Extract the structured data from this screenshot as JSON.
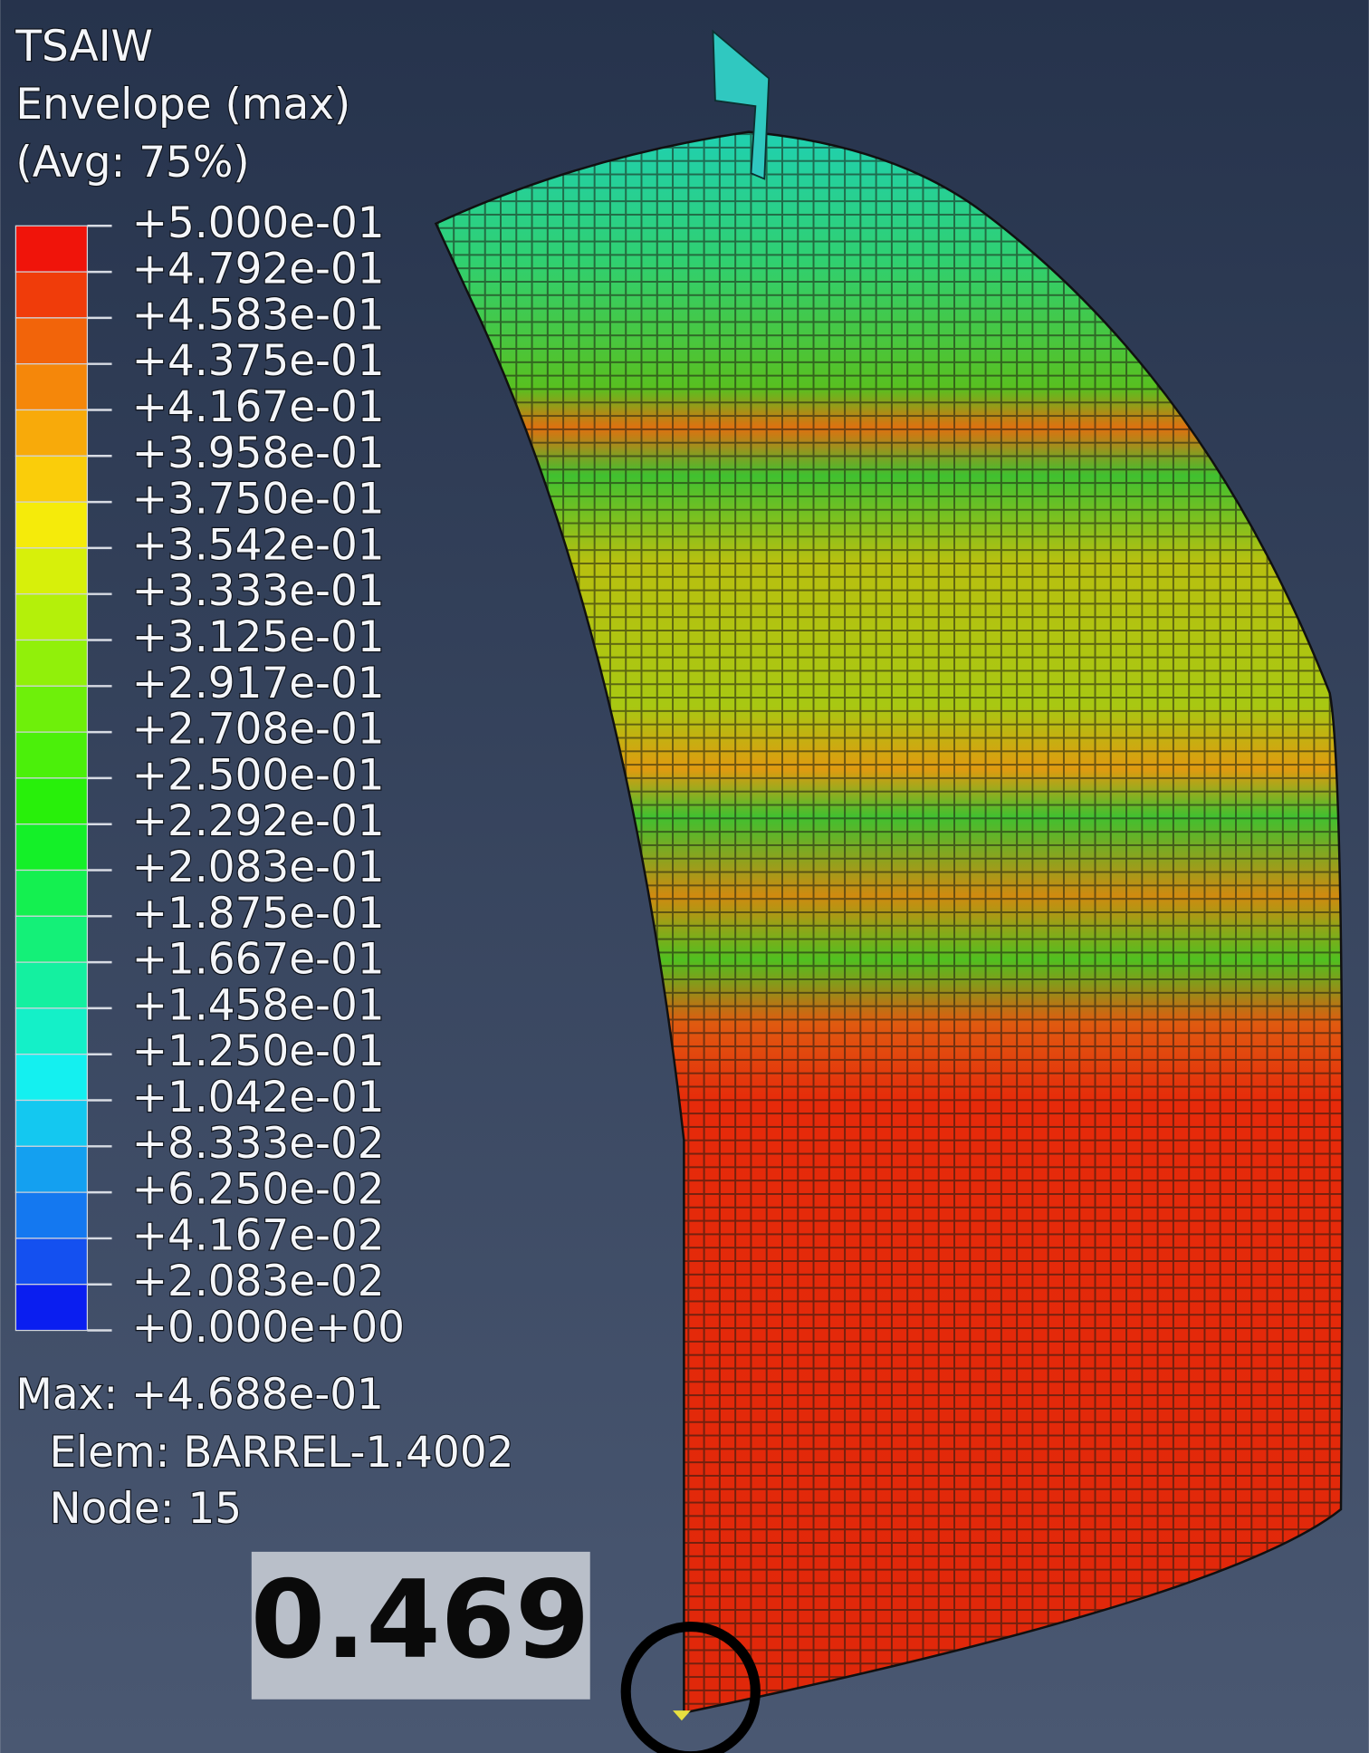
{
  "legend": {
    "title": [
      "TSAIW",
      "Envelope (max)",
      "(Avg: 75%)"
    ],
    "levels": [
      "+5.000e-01",
      "+4.792e-01",
      "+4.583e-01",
      "+4.375e-01",
      "+4.167e-01",
      "+3.958e-01",
      "+3.750e-01",
      "+3.542e-01",
      "+3.333e-01",
      "+3.125e-01",
      "+2.917e-01",
      "+2.708e-01",
      "+2.500e-01",
      "+2.292e-01",
      "+2.083e-01",
      "+1.875e-01",
      "+1.667e-01",
      "+1.458e-01",
      "+1.250e-01",
      "+1.042e-01",
      "+8.333e-02",
      "+6.250e-02",
      "+4.167e-02",
      "+2.083e-02",
      "+0.000e+00"
    ],
    "colors": [
      "#f0140a",
      "#f03c0a",
      "#f2640a",
      "#f5870a",
      "#f8aa0a",
      "#facd0a",
      "#f5eb0a",
      "#d7f00a",
      "#b4f00a",
      "#91f00a",
      "#6ef00a",
      "#4bf00a",
      "#28f00a",
      "#14f028",
      "#14f050",
      "#14f078",
      "#14f0a0",
      "#14f0c8",
      "#14f0f0",
      "#14c8f0",
      "#14a0f0",
      "#1478f0",
      "#1450f0",
      "#0a1ef0"
    ]
  },
  "info": [
    "Max: +4.688e-01",
    "Elem: BARREL-1.4002",
    "Node: 15"
  ],
  "callout": "0.469"
}
